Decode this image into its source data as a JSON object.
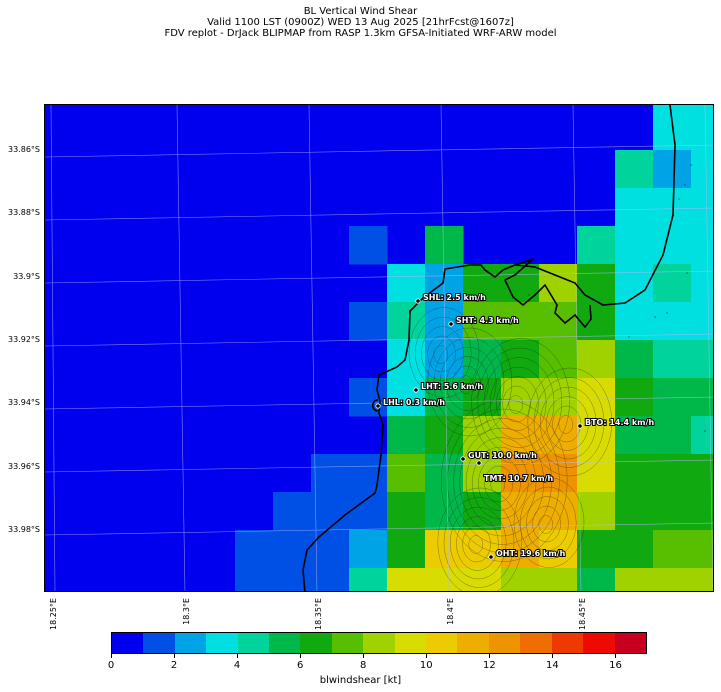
{
  "title": {
    "line1": "BL Vertical Wind Shear",
    "line2": "Valid 1100 LST (0900Z) WED 13 Aug 2025 [21hrFcst@1607z]",
    "line3": "FDV replot - DrJack BLIPMAP from RASP 1.3km GFSA-Initiated WRF-ARW model"
  },
  "axes": {
    "lat_labels": [
      "33.86°S",
      "33.88°S",
      "33.9°S",
      "33.92°S",
      "33.94°S",
      "33.96°S",
      "33.98°S"
    ],
    "lon_labels": [
      "18.25°E",
      "18.3°E",
      "18.35°E",
      "18.4°E",
      "18.45°E"
    ]
  },
  "stations": [
    {
      "name": "SHL",
      "label": "SHL: 2.5 km/h",
      "value_kmh": 2.5
    },
    {
      "name": "SHT",
      "label": "SHT: 4.3 km/h",
      "value_kmh": 4.3
    },
    {
      "name": "LHT",
      "label": "LHT: 5.6 km/h",
      "value_kmh": 5.6
    },
    {
      "name": "LHL",
      "label": "LHL: 0.3 km/h",
      "value_kmh": 0.3
    },
    {
      "name": "BTO",
      "label": "BTO: 14.4 km/h",
      "value_kmh": 14.4
    },
    {
      "name": "GUT",
      "label": "GUT: 10.0 km/h",
      "value_kmh": 10.0
    },
    {
      "name": "TMT",
      "label": "TMT: 10.7 km/h",
      "value_kmh": 10.7
    },
    {
      "name": "OHT",
      "label": "OHT: 19.6 km/h",
      "value_kmh": 19.6
    }
  ],
  "colorbar": {
    "label": "blwindshear [kt]",
    "ticks": [
      "0",
      "2",
      "4",
      "6",
      "8",
      "10",
      "12",
      "14",
      "16"
    ],
    "colors": [
      "#0000ee",
      "#0050e6",
      "#00a4e6",
      "#00e0e0",
      "#00d49c",
      "#00b84a",
      "#10aa10",
      "#58be00",
      "#a0d200",
      "#d8dc00",
      "#eccc00",
      "#eeae00",
      "#ee9400",
      "#ee6e00",
      "#ee3a00",
      "#ee0a00",
      "#c80020"
    ]
  }
}
